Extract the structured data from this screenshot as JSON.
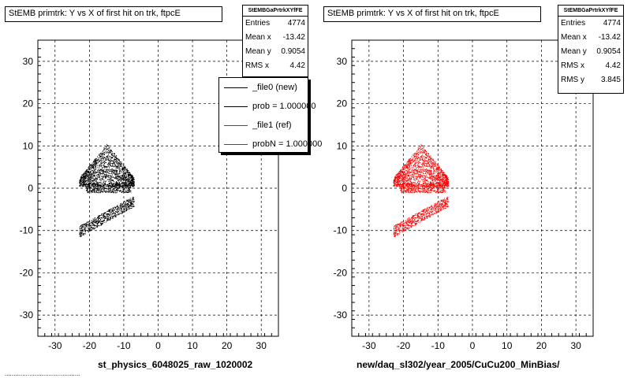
{
  "chart_data": [
    {
      "type": "scatter",
      "title": "StEMB primtrk: Y vs X of first hit on trk, ftpcE",
      "xlabel": "st_physics_6048025_raw_1020002",
      "ylabel": "",
      "xlim": [
        -35,
        35
      ],
      "ylim": [
        -35,
        35
      ],
      "xticks": [
        -30,
        -20,
        -10,
        0,
        10,
        20,
        30
      ],
      "yticks": [
        -30,
        -20,
        -10,
        0,
        10,
        20,
        30
      ],
      "grid": true,
      "series": [
        {
          "name": "_file0 (new)",
          "color": "#000000"
        }
      ],
      "stats": {
        "header": "StEMBGaPrtrkXYfFE",
        "rows": [
          {
            "label": "Entries",
            "value": "4774"
          },
          {
            "label": "Mean x",
            "value": "-13.42"
          },
          {
            "label": "Mean y",
            "value": "0.9054"
          },
          {
            "label": "RMS x",
            "value": "4.42"
          }
        ]
      },
      "legend": {
        "placement": "top-right",
        "entries": [
          {
            "label": "_file0 (new)",
            "color": "#000000"
          },
          {
            "label": "prob = 1.000000",
            "color": "#000000"
          },
          {
            "label": "_file1 (ref)",
            "color": "#ff0000"
          },
          {
            "label": "probN = 1.000000",
            "color": "#ff0000"
          }
        ]
      }
    },
    {
      "type": "scatter",
      "title": "StEMB primtrk: Y vs X of first hit on trk, ftpcE",
      "xlabel": "new/daq_sl302/year_2005/CuCu200_MinBias/",
      "ylabel": "",
      "xlim": [
        -35,
        35
      ],
      "ylim": [
        -35,
        35
      ],
      "xticks": [
        -30,
        -20,
        -10,
        0,
        10,
        20,
        30
      ],
      "yticks": [
        -30,
        -20,
        -10,
        0,
        10,
        20,
        30
      ],
      "grid": true,
      "series": [
        {
          "name": "_file1 (ref)",
          "color": "#ff0000"
        }
      ],
      "stats": {
        "header": "StEMBGaPrtrkXYfFE",
        "rows": [
          {
            "label": "Entries",
            "value": "4774"
          },
          {
            "label": "Mean x",
            "value": "-13.42"
          },
          {
            "label": "Mean y",
            "value": "0.9054"
          },
          {
            "label": "RMS x",
            "value": "4.42"
          },
          {
            "label": "RMS y",
            "value": "3.845"
          }
        ]
      }
    }
  ],
  "footer_text": "..........................................."
}
